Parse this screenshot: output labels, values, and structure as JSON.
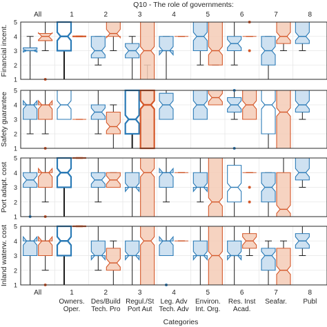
{
  "chart_data": {
    "type": "box",
    "title": "Q10 - The role of governments:",
    "xlabel": "Categories",
    "top_labels": [
      "All",
      "1",
      "2",
      "3",
      "4",
      "5",
      "6",
      "7",
      "8"
    ],
    "bottom_numbers": [
      "",
      "1",
      "2",
      "3",
      "4",
      "5",
      "6",
      "7",
      "8"
    ],
    "bottom_labels": [
      [
        "All"
      ],
      [
        "Owners.",
        "Oper."
      ],
      [
        "Des/Build",
        "Tech. Pro"
      ],
      [
        "Regul./St",
        "Port Aut"
      ],
      [
        "Leg. Adv",
        "Tech. Adv"
      ],
      [
        "Environ.",
        "Int. Org."
      ],
      [
        "Res. Inst",
        "Acad."
      ],
      [
        "Seafar."
      ],
      [
        "Publ"
      ]
    ],
    "ylim": [
      1,
      5
    ],
    "yticks": [
      "1",
      "2",
      "3",
      "4",
      "5"
    ],
    "grid": true,
    "series_colors": {
      "a": "#2a7ab6",
      "b": "#d4582a"
    },
    "panels": [
      {
        "ylabel": "Financial incent.",
        "boxes": [
          {
            "a": {
              "wl": 1,
              "q1": 3,
              "med": 3,
              "q3": 3.2,
              "wh": 4,
              "fill": true,
              "thick": false,
              "out": []
            },
            "b": {
              "wl": 3,
              "q1": 3.7,
              "med": 4,
              "q3": 4.2,
              "wh": 5,
              "fill": true,
              "thick": false,
              "out": [
                1
              ]
            }
          },
          {
            "a": {
              "wl": 1,
              "q1": 3,
              "med": 4,
              "q3": 5,
              "wh": 5,
              "fill": false,
              "thick": true,
              "out": []
            },
            "b": {
              "wl": 4,
              "q1": 4,
              "med": 4,
              "q3": 4,
              "wh": 4,
              "fill": false,
              "thick": true,
              "out": []
            }
          },
          {
            "a": {
              "wl": 2,
              "q1": 2.5,
              "med": 3,
              "q3": 4,
              "wh": 4,
              "fill": true,
              "thick": false,
              "out": []
            },
            "b": {
              "wl": 3,
              "q1": 4,
              "med": 4.2,
              "q3": 5,
              "wh": 5,
              "fill": true,
              "thick": false,
              "out": []
            }
          },
          {
            "a": {
              "wl": 1,
              "q1": 2.5,
              "med": 3,
              "q3": 3.5,
              "wh": 4,
              "fill": true,
              "thick": false,
              "out": []
            },
            "b": {
              "wl": 2,
              "q1": 1,
              "med": 3,
              "q3": 5,
              "wh": 5,
              "fill": true,
              "thick": false,
              "out": []
            }
          },
          {
            "a": {
              "wl": 1,
              "q1": 3,
              "med": 3,
              "q3": 4,
              "wh": 4,
              "fill": true,
              "thick": false,
              "out": []
            },
            "b": {
              "wl": 4,
              "q1": 4,
              "med": 4,
              "q3": 4,
              "wh": 4,
              "fill": false,
              "thick": false,
              "out": []
            }
          },
          {
            "a": {
              "wl": 2,
              "q1": 3,
              "med": 4,
              "q3": 5,
              "wh": 5,
              "fill": true,
              "thick": false,
              "out": []
            },
            "b": {
              "wl": 2,
              "q1": 2,
              "med": 3,
              "q3": 5,
              "wh": 5,
              "fill": true,
              "thick": false,
              "out": []
            }
          },
          {
            "a": {
              "wl": 2,
              "q1": 3,
              "med": 3.5,
              "q3": 4,
              "wh": 5,
              "fill": true,
              "thick": false,
              "out": []
            },
            "b": {
              "wl": 4,
              "q1": 4,
              "med": 4,
              "q3": 4,
              "wh": 4,
              "fill": false,
              "thick": false,
              "out": [
                5,
                3
              ]
            }
          },
          {
            "a": {
              "wl": 1,
              "q1": 2,
              "med": 3,
              "q3": 4,
              "wh": 4,
              "fill": true,
              "thick": false,
              "out": []
            },
            "b": {
              "wl": 3,
              "q1": 3.5,
              "med": 4,
              "q3": 5,
              "wh": 5,
              "fill": true,
              "thick": false,
              "out": []
            }
          },
          {
            "a": {
              "wl": 3,
              "q1": 3.5,
              "med": 4,
              "q3": 5,
              "wh": 5,
              "fill": true,
              "thick": false,
              "out": []
            },
            "b": null
          }
        ]
      },
      {
        "ylabel": "Safety guarantee",
        "boxes": [
          {
            "a": {
              "wl": 2,
              "q1": 3,
              "med": 4,
              "q3": 4,
              "wh": 5,
              "fill": true,
              "thick": false,
              "out": []
            },
            "b": {
              "wl": 2,
              "q1": 3,
              "med": 4,
              "q3": 4,
              "wh": 5,
              "fill": true,
              "thick": false,
              "out": [
                1
              ]
            }
          },
          {
            "a": {
              "wl": 3,
              "q1": 3,
              "med": 4,
              "q3": 5,
              "wh": 5,
              "fill": false,
              "thick": false,
              "out": []
            },
            "b": {
              "wl": 3,
              "q1": 3,
              "med": 3,
              "q3": 3,
              "wh": 3,
              "fill": false,
              "thick": false,
              "out": []
            }
          },
          {
            "a": {
              "wl": 2,
              "q1": 3,
              "med": 3.5,
              "q3": 4,
              "wh": 5,
              "fill": true,
              "thick": false,
              "out": []
            },
            "b": {
              "wl": 1,
              "q1": 2,
              "med": 2.5,
              "q3": 3.5,
              "wh": 4,
              "fill": true,
              "thick": false,
              "out": []
            }
          },
          {
            "a": {
              "wl": 1,
              "q1": 2,
              "med": 3,
              "q3": 5,
              "wh": 5,
              "fill": false,
              "thick": true,
              "out": []
            },
            "b": {
              "wl": 1,
              "q1": 1,
              "med": 4,
              "q3": 5,
              "wh": 5,
              "fill": true,
              "thick": true,
              "out": []
            }
          },
          {
            "a": {
              "wl": 3,
              "q1": 3,
              "med": 4,
              "q3": 4.8,
              "wh": 5,
              "fill": true,
              "thick": false,
              "out": []
            },
            "b": null
          },
          {
            "a": {
              "wl": 3,
              "q1": 3,
              "med": 4,
              "q3": 5,
              "wh": 5,
              "fill": true,
              "thick": false,
              "out": []
            },
            "b": {
              "wl": 4,
              "q1": 4,
              "med": 4.5,
              "q3": 5,
              "wh": 5,
              "fill": true,
              "thick": false,
              "out": []
            }
          },
          {
            "a": {
              "wl": 3,
              "q1": 3.5,
              "med": 4,
              "q3": 4.5,
              "wh": 5,
              "fill": true,
              "thick": false,
              "out": [
                1,
                5
              ]
            },
            "b": {
              "wl": 3,
              "q1": 3,
              "med": 4,
              "q3": 5,
              "wh": 5,
              "fill": true,
              "thick": false,
              "out": []
            }
          },
          {
            "a": {
              "wl": 1,
              "q1": 2,
              "med": 4,
              "q3": 5,
              "wh": 5,
              "fill": false,
              "thick": false,
              "out": []
            },
            "b": {
              "wl": 1,
              "q1": 1,
              "med": 3.5,
              "q3": 5,
              "wh": 5,
              "fill": true,
              "thick": false,
              "out": []
            }
          },
          {
            "a": {
              "wl": 3,
              "q1": 3.5,
              "med": 4,
              "q3": 5,
              "wh": 5,
              "fill": true,
              "thick": false,
              "out": []
            },
            "b": null
          }
        ]
      },
      {
        "ylabel": "Port adapt. cost",
        "boxes": [
          {
            "a": {
              "wl": 1,
              "q1": 3,
              "med": 3.5,
              "q3": 4,
              "wh": 5,
              "fill": true,
              "thick": false,
              "out": [
                1
              ]
            },
            "b": {
              "wl": 2,
              "q1": 3,
              "med": 4,
              "q3": 4,
              "wh": 5,
              "fill": true,
              "thick": false,
              "out": [
                1
              ]
            }
          },
          {
            "a": {
              "wl": 1,
              "q1": 3,
              "med": 4,
              "q3": 5,
              "wh": 5,
              "fill": false,
              "thick": true,
              "out": []
            },
            "b": {
              "wl": 5,
              "q1": 5,
              "med": 5,
              "q3": 5,
              "wh": 5,
              "fill": false,
              "thick": true,
              "out": []
            }
          },
          {
            "a": {
              "wl": 2,
              "q1": 3,
              "med": 3.5,
              "q3": 4,
              "wh": 5,
              "fill": true,
              "thick": false,
              "out": []
            },
            "b": {
              "wl": 3,
              "q1": 3,
              "med": 3.5,
              "q3": 4,
              "wh": 4,
              "fill": true,
              "thick": false,
              "out": []
            }
          },
          {
            "a": {
              "wl": 1,
              "q1": 3,
              "med": 3,
              "q3": 4,
              "wh": 5,
              "fill": true,
              "thick": false,
              "out": []
            },
            "b": {
              "wl": 1,
              "q1": 1,
              "med": 4,
              "q3": 5,
              "wh": 5,
              "fill": true,
              "thick": false,
              "out": []
            }
          },
          {
            "a": {
              "wl": 2,
              "q1": 3,
              "med": 4,
              "q3": 4,
              "wh": 5,
              "fill": true,
              "thick": false,
              "out": []
            },
            "b": {
              "wl": 4,
              "q1": 4,
              "med": 4,
              "q3": 4,
              "wh": 4,
              "fill": false,
              "thick": false,
              "out": []
            }
          },
          {
            "a": {
              "wl": 2,
              "q1": 3,
              "med": 3,
              "q3": 4,
              "wh": 5,
              "fill": true,
              "thick": false,
              "out": []
            },
            "b": {
              "wl": 1,
              "q1": 1,
              "med": 2,
              "q3": 5,
              "wh": 5,
              "fill": true,
              "thick": false,
              "out": []
            }
          },
          {
            "a": {
              "wl": 1,
              "q1": 2,
              "med": 3,
              "q3": 4.5,
              "wh": 5,
              "fill": false,
              "thick": false,
              "out": []
            },
            "b": {
              "wl": 4,
              "q1": 4,
              "med": 4,
              "q3": 4,
              "wh": 4,
              "fill": false,
              "thick": false,
              "out": [
                3,
                2
              ]
            }
          },
          {
            "a": {
              "wl": 1,
              "q1": 2,
              "med": 3,
              "q3": 4,
              "wh": 4,
              "fill": true,
              "thick": false,
              "out": []
            },
            "b": {
              "wl": 1,
              "q1": 1,
              "med": 1.5,
              "q3": 4,
              "wh": 5,
              "fill": true,
              "thick": false,
              "out": []
            }
          },
          {
            "a": {
              "wl": 3,
              "q1": 3.5,
              "med": 4,
              "q3": 5,
              "wh": 5,
              "fill": true,
              "thick": false,
              "out": []
            },
            "b": null
          }
        ]
      },
      {
        "ylabel": "Inland waterw. cost",
        "boxes": [
          {
            "a": {
              "wl": 1,
              "q1": 3,
              "med": 4,
              "q3": 4,
              "wh": 5,
              "fill": true,
              "thick": false,
              "out": []
            },
            "b": {
              "wl": 2,
              "q1": 3,
              "med": 4,
              "q3": 4,
              "wh": 5,
              "fill": true,
              "thick": false,
              "out": [
                1
              ]
            }
          },
          {
            "a": {
              "wl": 1,
              "q1": 3,
              "med": 4,
              "q3": 5,
              "wh": 5,
              "fill": false,
              "thick": true,
              "out": []
            },
            "b": {
              "wl": 5,
              "q1": 5,
              "med": 5,
              "q3": 5,
              "wh": 5,
              "fill": false,
              "thick": true,
              "out": []
            }
          },
          {
            "a": {
              "wl": 2,
              "q1": 3,
              "med": 3,
              "q3": 4,
              "wh": 5,
              "fill": true,
              "thick": false,
              "out": []
            },
            "b": {
              "wl": 1,
              "q1": 2,
              "med": 2.5,
              "q3": 3.5,
              "wh": 4,
              "fill": true,
              "thick": false,
              "out": []
            }
          },
          {
            "a": {
              "wl": 1,
              "q1": 3,
              "med": 3,
              "q3": 4,
              "wh": 5,
              "fill": true,
              "thick": false,
              "out": []
            },
            "b": {
              "wl": 1,
              "q1": 1,
              "med": 4,
              "q3": 5,
              "wh": 5,
              "fill": true,
              "thick": false,
              "out": []
            }
          },
          {
            "a": {
              "wl": 3,
              "q1": 3,
              "med": 4,
              "q3": 4,
              "wh": 5,
              "fill": true,
              "thick": false,
              "out": [
                1
              ]
            },
            "b": {
              "wl": 4,
              "q1": 4,
              "med": 4,
              "q3": 4,
              "wh": 4,
              "fill": false,
              "thick": false,
              "out": []
            }
          },
          {
            "a": {
              "wl": 1,
              "q1": 3,
              "med": 3,
              "q3": 4,
              "wh": 5,
              "fill": true,
              "thick": false,
              "out": []
            },
            "b": {
              "wl": 1,
              "q1": 1,
              "med": 3,
              "q3": 5,
              "wh": 5,
              "fill": true,
              "thick": false,
              "out": []
            }
          },
          {
            "a": {
              "wl": 1,
              "q1": 3,
              "med": 3,
              "q3": 4,
              "wh": 5,
              "fill": true,
              "thick": false,
              "out": []
            },
            "b": {
              "wl": 3,
              "q1": 3.5,
              "med": 4,
              "q3": 4.5,
              "wh": 5,
              "fill": true,
              "thick": false,
              "out": []
            }
          },
          {
            "a": {
              "wl": 1,
              "q1": 2,
              "med": 3,
              "q3": 3.5,
              "wh": 4,
              "fill": true,
              "thick": false,
              "out": []
            },
            "b": {
              "wl": 1,
              "q1": 1,
              "med": 2,
              "q3": 3.5,
              "wh": 4,
              "fill": true,
              "thick": false,
              "out": []
            }
          },
          {
            "a": {
              "wl": 3,
              "q1": 3.5,
              "med": 4,
              "q3": 4.5,
              "wh": 5,
              "fill": true,
              "thick": false,
              "out": []
            },
            "b": null
          }
        ]
      }
    ]
  }
}
